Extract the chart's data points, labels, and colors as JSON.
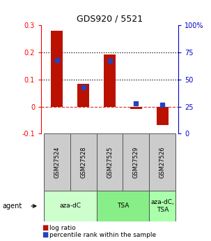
{
  "title": "GDS920 / 5521",
  "samples": [
    "GSM27524",
    "GSM27528",
    "GSM27525",
    "GSM27529",
    "GSM27526"
  ],
  "log_ratios": [
    0.28,
    0.083,
    0.193,
    -0.008,
    -0.068
  ],
  "percentile_ranks": [
    68,
    43,
    67,
    28,
    26.5
  ],
  "agent_group_ranges": [
    [
      0,
      1
    ],
    [
      2,
      3
    ],
    [
      4,
      4
    ]
  ],
  "agent_labels": [
    "aza-dC",
    "TSA",
    "aza-dC,\nTSA"
  ],
  "agent_colors": [
    "#ccffcc",
    "#88ee88",
    "#aaffaa"
  ],
  "bar_color": "#bb1100",
  "dot_color": "#2244bb",
  "ylim_left": [
    -0.1,
    0.3
  ],
  "ylim_right": [
    0,
    100
  ],
  "yticks_left": [
    -0.1,
    0.0,
    0.1,
    0.2,
    0.3
  ],
  "yticks_right": [
    0,
    25,
    50,
    75,
    100
  ],
  "hline_dotted": [
    0.1,
    0.2
  ],
  "hline_dashed": 0.0,
  "background_color": "#ffffff",
  "label_log_ratio": "log ratio",
  "label_percentile": "percentile rank within the sample",
  "bar_width": 0.45
}
